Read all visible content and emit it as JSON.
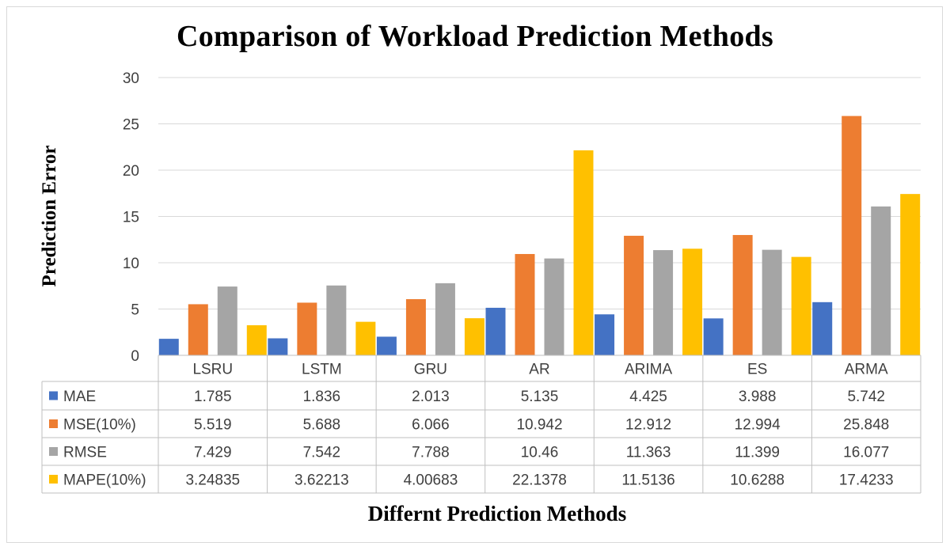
{
  "chart_data": {
    "type": "bar",
    "title": "Comparison of Workload Prediction Methods",
    "xlabel": "Differnt Prediction Methods",
    "ylabel": "Prediction Error",
    "ylim": [
      0,
      30
    ],
    "yticks": [
      0,
      5,
      10,
      15,
      20,
      25,
      30
    ],
    "grid": true,
    "legend": "data-table",
    "categories": [
      "LSRU",
      "LSTM",
      "GRU",
      "AR",
      "ARIMA",
      "ES",
      "ARMA"
    ],
    "series": [
      {
        "name": "MAE",
        "color": "#4472c4",
        "values": [
          1.785,
          1.836,
          2.013,
          5.135,
          4.425,
          3.988,
          5.742
        ],
        "labels": [
          "1.785",
          "1.836",
          "2.013",
          "5.135",
          "4.425",
          "3.988",
          "5.742"
        ]
      },
      {
        "name": "MSE(10%)",
        "color": "#ed7d31",
        "values": [
          5.519,
          5.688,
          6.066,
          10.942,
          12.912,
          12.994,
          25.848
        ],
        "labels": [
          "5.519",
          "5.688",
          "6.066",
          "10.942",
          "12.912",
          "12.994",
          "25.848"
        ]
      },
      {
        "name": "RMSE",
        "color": "#a5a5a5",
        "values": [
          7.429,
          7.542,
          7.788,
          10.46,
          11.363,
          11.399,
          16.077
        ],
        "labels": [
          "7.429",
          "7.542",
          "7.788",
          "10.46",
          "11.363",
          "11.399",
          "16.077"
        ]
      },
      {
        "name": "MAPE(10%)",
        "color": "#ffc000",
        "values": [
          3.24835,
          3.62213,
          4.00683,
          22.1378,
          11.5136,
          10.6288,
          17.4233
        ],
        "labels": [
          "3.24835",
          "3.62213",
          "4.00683",
          "22.1378",
          "11.5136",
          "10.6288",
          "17.4233"
        ]
      }
    ]
  }
}
